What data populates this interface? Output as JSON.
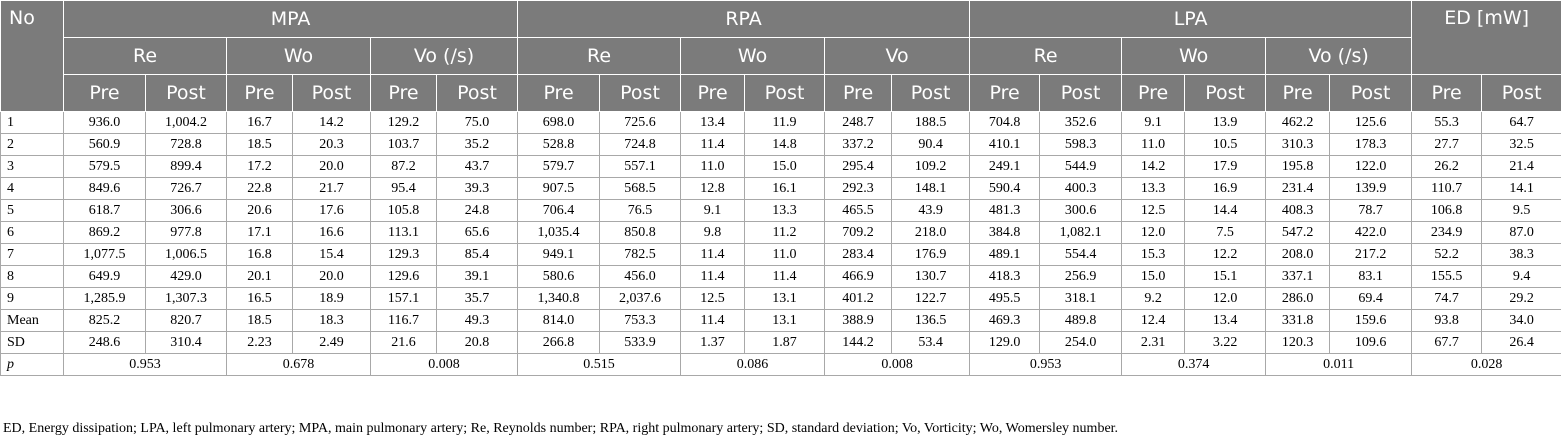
{
  "header": {
    "no_label": "No",
    "groups": [
      "MPA",
      "RPA",
      "LPA"
    ],
    "ed_label": "ED [mW]",
    "params": [
      [
        "Re",
        "Wo",
        "Vo (/s)"
      ],
      [
        "Re",
        "Wo",
        "Vo"
      ],
      [
        "Re",
        "Wo",
        "Vo (/s)"
      ]
    ],
    "pre": "Pre",
    "post": "Post"
  },
  "rows": [
    {
      "label": "1",
      "values": [
        "936.0",
        "1,004.2",
        "16.7",
        "14.2",
        "129.2",
        "75.0",
        "698.0",
        "725.6",
        "13.4",
        "11.9",
        "248.7",
        "188.5",
        "704.8",
        "352.6",
        "9.1",
        "13.9",
        "462.2",
        "125.6",
        "55.3",
        "64.7"
      ]
    },
    {
      "label": "2",
      "values": [
        "560.9",
        "728.8",
        "18.5",
        "20.3",
        "103.7",
        "35.2",
        "528.8",
        "724.8",
        "11.4",
        "14.8",
        "337.2",
        "90.4",
        "410.1",
        "598.3",
        "11.0",
        "10.5",
        "310.3",
        "178.3",
        "27.7",
        "32.5"
      ]
    },
    {
      "label": "3",
      "values": [
        "579.5",
        "899.4",
        "17.2",
        "20.0",
        "87.2",
        "43.7",
        "579.7",
        "557.1",
        "11.0",
        "15.0",
        "295.4",
        "109.2",
        "249.1",
        "544.9",
        "14.2",
        "17.9",
        "195.8",
        "122.0",
        "26.2",
        "21.4"
      ]
    },
    {
      "label": "4",
      "values": [
        "849.6",
        "726.7",
        "22.8",
        "21.7",
        "95.4",
        "39.3",
        "907.5",
        "568.5",
        "12.8",
        "16.1",
        "292.3",
        "148.1",
        "590.4",
        "400.3",
        "13.3",
        "16.9",
        "231.4",
        "139.9",
        "110.7",
        "14.1"
      ]
    },
    {
      "label": "5",
      "values": [
        "618.7",
        "306.6",
        "20.6",
        "17.6",
        "105.8",
        "24.8",
        "706.4",
        "76.5",
        "9.1",
        "13.3",
        "465.5",
        "43.9",
        "481.3",
        "300.6",
        "12.5",
        "14.4",
        "408.3",
        "78.7",
        "106.8",
        "9.5"
      ]
    },
    {
      "label": "6",
      "values": [
        "869.2",
        "977.8",
        "17.1",
        "16.6",
        "113.1",
        "65.6",
        "1,035.4",
        "850.8",
        "9.8",
        "11.2",
        "709.2",
        "218.0",
        "384.8",
        "1,082.1",
        "12.0",
        "7.5",
        "547.2",
        "422.0",
        "234.9",
        "87.0"
      ]
    },
    {
      "label": "7",
      "values": [
        "1,077.5",
        "1,006.5",
        "16.8",
        "15.4",
        "129.3",
        "85.4",
        "949.1",
        "782.5",
        "11.4",
        "11.0",
        "283.4",
        "176.9",
        "489.1",
        "554.4",
        "15.3",
        "12.2",
        "208.0",
        "217.2",
        "52.2",
        "38.3"
      ]
    },
    {
      "label": "8",
      "values": [
        "649.9",
        "429.0",
        "20.1",
        "20.0",
        "129.6",
        "39.1",
        "580.6",
        "456.0",
        "11.4",
        "11.4",
        "466.9",
        "130.7",
        "418.3",
        "256.9",
        "15.0",
        "15.1",
        "337.1",
        "83.1",
        "155.5",
        "9.4"
      ]
    },
    {
      "label": "9",
      "values": [
        "1,285.9",
        "1,307.3",
        "16.5",
        "18.9",
        "157.1",
        "35.7",
        "1,340.8",
        "2,037.6",
        "12.5",
        "13.1",
        "401.2",
        "122.7",
        "495.5",
        "318.1",
        "9.2",
        "12.0",
        "286.0",
        "69.4",
        "74.7",
        "29.2"
      ]
    },
    {
      "label": "Mean",
      "values": [
        "825.2",
        "820.7",
        "18.5",
        "18.3",
        "116.7",
        "49.3",
        "814.0",
        "753.3",
        "11.4",
        "13.1",
        "388.9",
        "136.5",
        "469.3",
        "489.8",
        "12.4",
        "13.4",
        "331.8",
        "159.6",
        "93.8",
        "34.0"
      ]
    },
    {
      "label": "SD",
      "values": [
        "248.6",
        "310.4",
        "2.23",
        "2.49",
        "21.6",
        "20.8",
        "266.8",
        "533.9",
        "1.37",
        "1.87",
        "144.2",
        "53.4",
        "129.0",
        "254.0",
        "2.31",
        "3.22",
        "120.3",
        "109.6",
        "67.7",
        "26.4"
      ]
    }
  ],
  "p_row": {
    "label": "p",
    "values": [
      "0.953",
      "0.678",
      "0.008",
      "0.515",
      "0.086",
      "0.008",
      "0.953",
      "0.374",
      "0.011",
      "0.028"
    ]
  },
  "footnote": "ED, Energy dissipation; LPA, left pulmonary artery; MPA, main pulmonary artery; Re, Reynolds number; RPA, right pulmonary artery; SD, standard deviation; Vo, Vorticity; Wo, Womersley number."
}
